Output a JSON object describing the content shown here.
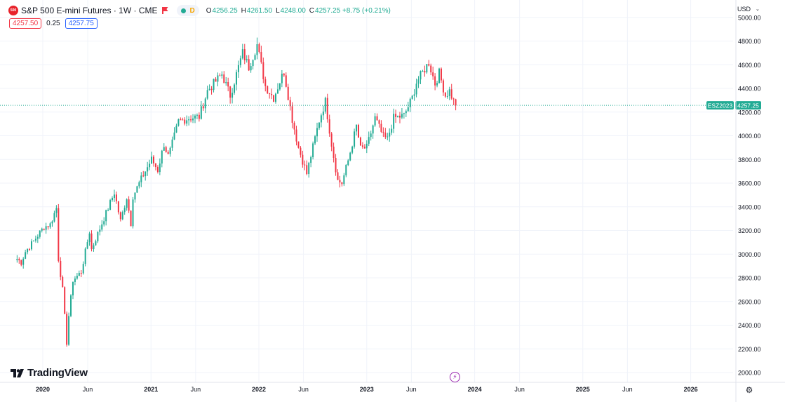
{
  "header": {
    "symbol_badge": "500",
    "title": "S&P 500 E-mini Futures · 1W · CME",
    "status_letter": "D",
    "ohlc": [
      {
        "label": "O",
        "value": "4256.25"
      },
      {
        "label": "H",
        "value": "4261.50"
      },
      {
        "label": "L",
        "value": "4248.00"
      },
      {
        "label": "C",
        "value": "4257.25 +8.75 (+0.21%)"
      }
    ],
    "bid": "4257.50",
    "spread": "0.25",
    "ask": "4257.75"
  },
  "currency": "USD",
  "watermark": "TradingView",
  "colors": {
    "up": "#22ab94",
    "down": "#f23645",
    "grid": "#f0f3fa",
    "badge": "#22ab94"
  },
  "chart_data": {
    "type": "candlestick",
    "interval": "1W",
    "y_ticks": [
      2000,
      2200,
      2400,
      2600,
      2800,
      3000,
      3200,
      3400,
      3600,
      3800,
      4000,
      4200,
      4400,
      4600,
      4800,
      5000
    ],
    "y_tick_labels": [
      "2000.00",
      "2200.00",
      "2400.00",
      "2600.00",
      "2800.00",
      "3000.00",
      "3200.00",
      "3400.00",
      "3600.00",
      "3800.00",
      "4000.00",
      "4200.00",
      "4400.00",
      "4600.00",
      "4800.00",
      "5000.00"
    ],
    "x_ticks": [
      {
        "date": "2020-01-01",
        "label": "2020",
        "major": true
      },
      {
        "date": "2020-06-01",
        "label": "Jun",
        "major": false
      },
      {
        "date": "2021-01-01",
        "label": "2021",
        "major": true
      },
      {
        "date": "2021-06-01",
        "label": "Jun",
        "major": false
      },
      {
        "date": "2022-01-01",
        "label": "2022",
        "major": true
      },
      {
        "date": "2022-06-01",
        "label": "Jun",
        "major": false
      },
      {
        "date": "2023-01-01",
        "label": "2023",
        "major": true
      },
      {
        "date": "2023-06-01",
        "label": "Jun",
        "major": false
      },
      {
        "date": "2024-01-01",
        "label": "2024",
        "major": true
      },
      {
        "date": "2024-06-01",
        "label": "Jun",
        "major": false
      },
      {
        "date": "2025-01-01",
        "label": "2025",
        "major": true
      },
      {
        "date": "2025-06-01",
        "label": "Jun",
        "major": false
      },
      {
        "date": "2026-01-01",
        "label": "2026",
        "major": true
      }
    ],
    "last_price": 4257.25,
    "last_price_label": "4257.25",
    "contract_label": "ESZ2023",
    "first_candle_date": "2019-10-06",
    "close_path": [
      {
        "date": "2019-10-06",
        "close": 2960
      },
      {
        "date": "2019-10-20",
        "close": 2930
      },
      {
        "date": "2019-11-03",
        "close": 3020
      },
      {
        "date": "2019-12-01",
        "close": 3110
      },
      {
        "date": "2020-01-05",
        "close": 3230
      },
      {
        "date": "2020-01-26",
        "close": 3250
      },
      {
        "date": "2020-02-16",
        "close": 3390
      },
      {
        "date": "2020-02-23",
        "close": 2960
      },
      {
        "date": "2020-03-08",
        "close": 2700
      },
      {
        "date": "2020-03-22",
        "close": 2250
      },
      {
        "date": "2020-03-29",
        "close": 2480
      },
      {
        "date": "2020-04-12",
        "close": 2780
      },
      {
        "date": "2020-05-10",
        "close": 2850
      },
      {
        "date": "2020-06-07",
        "close": 3190
      },
      {
        "date": "2020-06-14",
        "close": 3040
      },
      {
        "date": "2020-07-19",
        "close": 3260
      },
      {
        "date": "2020-08-30",
        "close": 3520
      },
      {
        "date": "2020-09-20",
        "close": 3280
      },
      {
        "date": "2020-10-11",
        "close": 3480
      },
      {
        "date": "2020-10-25",
        "close": 3260
      },
      {
        "date": "2020-11-01",
        "close": 3490
      },
      {
        "date": "2020-12-06",
        "close": 3670
      },
      {
        "date": "2021-01-03",
        "close": 3800
      },
      {
        "date": "2021-01-24",
        "close": 3710
      },
      {
        "date": "2021-02-14",
        "close": 3930
      },
      {
        "date": "2021-03-01",
        "close": 3820
      },
      {
        "date": "2021-04-04",
        "close": 4120
      },
      {
        "date": "2021-05-09",
        "close": 4150
      },
      {
        "date": "2021-06-13",
        "close": 4160
      },
      {
        "date": "2021-07-11",
        "close": 4380
      },
      {
        "date": "2021-08-29",
        "close": 4520
      },
      {
        "date": "2021-09-26",
        "close": 4340
      },
      {
        "date": "2021-10-24",
        "close": 4580
      },
      {
        "date": "2021-11-07",
        "close": 4700
      },
      {
        "date": "2021-11-28",
        "close": 4580
      },
      {
        "date": "2021-12-26",
        "close": 4770
      },
      {
        "date": "2022-01-02",
        "close": 4680
      },
      {
        "date": "2022-01-23",
        "close": 4420
      },
      {
        "date": "2022-02-20",
        "close": 4320
      },
      {
        "date": "2022-03-13",
        "close": 4460
      },
      {
        "date": "2022-03-27",
        "close": 4540
      },
      {
        "date": "2022-04-24",
        "close": 4140
      },
      {
        "date": "2022-05-15",
        "close": 3900
      },
      {
        "date": "2022-06-12",
        "close": 3680
      },
      {
        "date": "2022-06-26",
        "close": 3830
      },
      {
        "date": "2022-07-24",
        "close": 4130
      },
      {
        "date": "2022-08-14",
        "close": 4290
      },
      {
        "date": "2022-09-04",
        "close": 3930
      },
      {
        "date": "2022-09-25",
        "close": 3620
      },
      {
        "date": "2022-10-09",
        "close": 3600
      },
      {
        "date": "2022-10-30",
        "close": 3790
      },
      {
        "date": "2022-11-27",
        "close": 4080
      },
      {
        "date": "2022-12-11",
        "close": 3890
      },
      {
        "date": "2023-01-01",
        "close": 3900
      },
      {
        "date": "2023-01-29",
        "close": 4150
      },
      {
        "date": "2023-02-26",
        "close": 3990
      },
      {
        "date": "2023-03-12",
        "close": 3970
      },
      {
        "date": "2023-04-02",
        "close": 4150
      },
      {
        "date": "2023-05-07",
        "close": 4170
      },
      {
        "date": "2023-06-04",
        "close": 4320
      },
      {
        "date": "2023-06-18",
        "close": 4450
      },
      {
        "date": "2023-07-30",
        "close": 4620
      },
      {
        "date": "2023-08-20",
        "close": 4440
      },
      {
        "date": "2023-09-03",
        "close": 4530
      },
      {
        "date": "2023-09-24",
        "close": 4340
      },
      {
        "date": "2023-10-08",
        "close": 4380
      },
      {
        "date": "2023-10-22",
        "close": 4290
      },
      {
        "date": "2023-10-29",
        "close": 4257
      }
    ]
  }
}
